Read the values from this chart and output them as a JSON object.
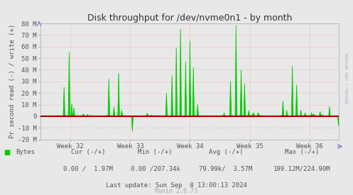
{
  "title": "Disk throughput for /dev/nvme0n1 - by month",
  "ylabel": "Pr second read (-) / write (+)",
  "background_color": "#E8E8E8",
  "plot_bg_color": "#E8E8E8",
  "grid_color": "#FF9999",
  "grid_color2": "#DDDDDD",
  "line_color": "#00CC00",
  "zero_line_color": "#990000",
  "ylim": [
    -20000000,
    80000000
  ],
  "yticks": [
    -20000000,
    -10000000,
    0,
    10000000,
    20000000,
    30000000,
    40000000,
    50000000,
    60000000,
    70000000,
    80000000
  ],
  "ytick_labels": [
    "-20 M",
    "-10 M",
    "0",
    "10 M",
    "20 M",
    "30 M",
    "40 M",
    "50 M",
    "60 M",
    "70 M",
    "80 M"
  ],
  "xtick_labels": [
    "Week 32",
    "Week 33",
    "Week 34",
    "Week 35",
    "Week 36"
  ],
  "watermark": "RRDTOOL / TOBI OETIKER",
  "footer_last_update": "Last update: Sun Sep  8 13:00:13 2024",
  "footer_munin": "Munin 2.0.73",
  "text_color": "#555555",
  "title_color": "#333333",
  "watermark_color": "#AAAACC"
}
